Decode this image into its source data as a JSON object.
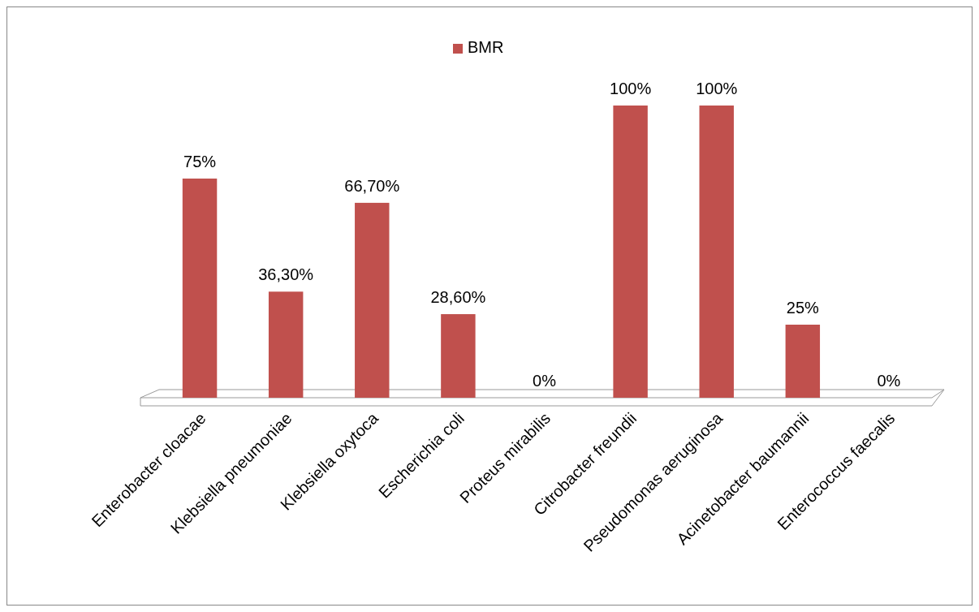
{
  "chart_data": {
    "type": "bar",
    "categories": [
      "Enterobacter cloacae",
      "Klebsiella pneumoniae",
      "Klebsiella oxytoca",
      "Escherichia coli",
      "Proteus mirabilis",
      "Citrobacter freundii",
      "Pseudomonas aeruginosa",
      "Acinetobacter baumannii",
      "Enterococcus faecalis"
    ],
    "series": [
      {
        "name": "BMR",
        "color": "#c0504d",
        "values": [
          75,
          36.3,
          66.7,
          28.6,
          0,
          100,
          100,
          25,
          0
        ],
        "value_labels": [
          "75%",
          "36,30%",
          "66,70%",
          "28,60%",
          "0%",
          "100%",
          "100%",
          "25%",
          "0%"
        ]
      }
    ],
    "legend": "top"
  }
}
